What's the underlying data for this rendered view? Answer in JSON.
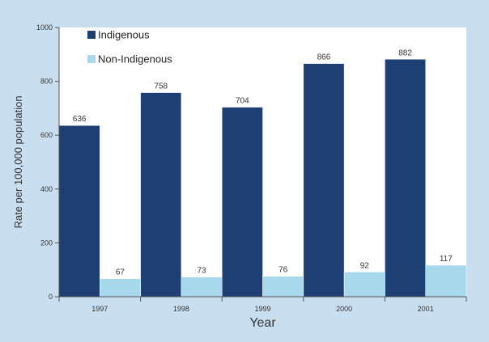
{
  "chart_data": {
    "type": "bar",
    "categories": [
      "1997",
      "1998",
      "1999",
      "2000",
      "2001"
    ],
    "series": [
      {
        "name": "Indigenous",
        "values": [
          636,
          758,
          704,
          866,
          882
        ],
        "color": "#1e3f73"
      },
      {
        "name": "Non-Indigenous",
        "values": [
          67,
          73,
          76,
          92,
          117
        ],
        "color": "#a8d8ec"
      }
    ],
    "data_labels": [
      [
        "636",
        "758",
        "704",
        "866",
        "882"
      ],
      [
        "67",
        "73",
        "76",
        "92",
        "117"
      ]
    ],
    "xlabel": "Year",
    "ylabel": "Rate per 100,000 population",
    "ylim": [
      0,
      1000
    ],
    "yticks": [
      "0",
      "200",
      "400",
      "600",
      "800",
      "1000"
    ],
    "legend_position": "top-left",
    "grid": false,
    "plot_background": "#ffffff",
    "figure_background": "#c9dff0"
  }
}
